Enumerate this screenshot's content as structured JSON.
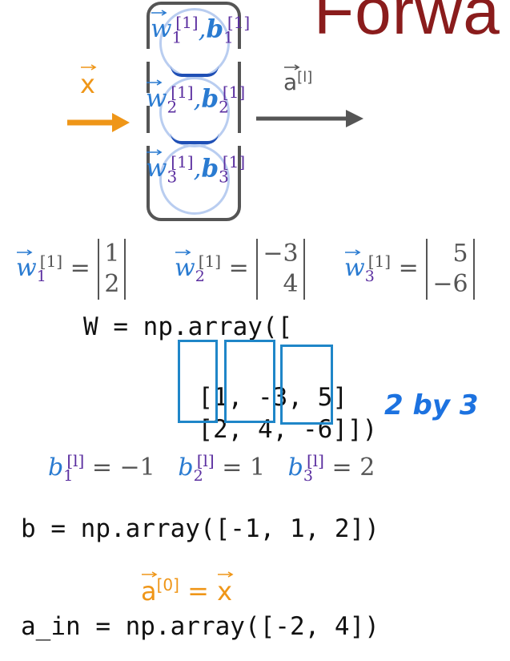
{
  "title": "Forwa",
  "input_label": "x",
  "output_label": "a",
  "output_superscript": "[l]",
  "neurons": [
    {
      "w": "w",
      "sub": "1",
      "sup": "[1]",
      "b": "b",
      "bsub": "1",
      "bsup": "[1]"
    },
    {
      "w": "w",
      "sub": "2",
      "sup": "[1]",
      "b": "b",
      "bsub": "2",
      "bsup": "[1]"
    },
    {
      "w": "w",
      "sub": "3",
      "sup": "[1]",
      "b": "b",
      "bsub": "3",
      "bsup": "[1]"
    }
  ],
  "weight_vectors": [
    {
      "sub": "1",
      "sup": "[1]",
      "values": [
        "1",
        "2"
      ]
    },
    {
      "sub": "2",
      "sup": "[1]",
      "values": [
        "−3",
        "4"
      ]
    },
    {
      "sub": "3",
      "sup": "[1]",
      "values": [
        "5",
        "−6"
      ]
    }
  ],
  "code_W": {
    "line1": "W = np.array([",
    "row1": [
      "[1,",
      "-3,",
      "5]"
    ],
    "row2": [
      "[2,",
      "4,",
      "-6]]"
    ],
    "row2_close": ")"
  },
  "annotation": "2 by 3",
  "biases": [
    {
      "sub": "1",
      "sup": "[l]",
      "value": "= −1"
    },
    {
      "sub": "2",
      "sup": "[l]",
      "value": "= 1"
    },
    {
      "sub": "3",
      "sup": "[l]",
      "value": "= 2"
    }
  ],
  "code_b": "b = np.array([-1, 1, 2])",
  "a0_eq": {
    "a": "a",
    "sup": "[0]",
    "eq": "=",
    "x": "x"
  },
  "code_a_in": "a_in = np.array([-2, 4])",
  "colors": {
    "title": "#8a1c1c",
    "blue": "#2a7bd1",
    "purple": "#5b2fa0",
    "orange": "#ef9618",
    "box": "#1f86c8"
  }
}
